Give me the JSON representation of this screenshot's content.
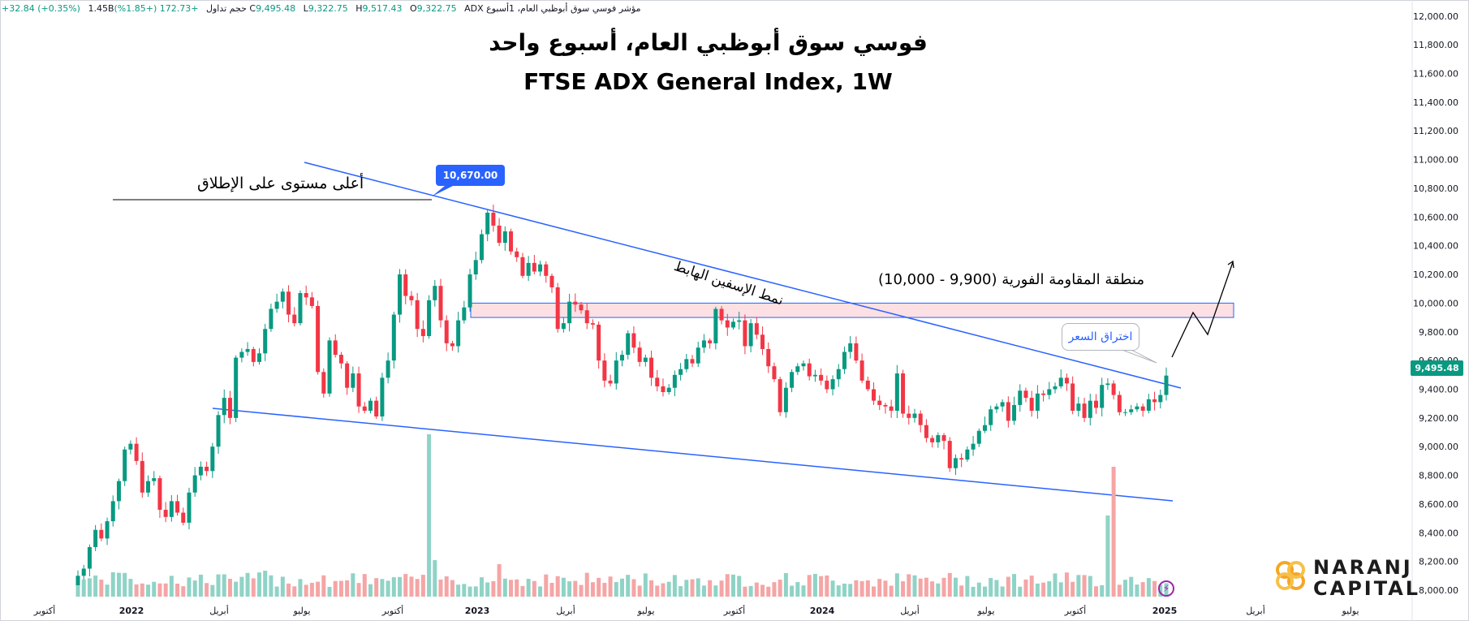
{
  "legend": {
    "symbol_name": "مؤشر فوسي سوق أبوظبي العام، 1أسبوع",
    "exchange": "ADX",
    "o_label": "O",
    "o_value": "9,322.75",
    "h_label": "H",
    "h_value": "9,517.43",
    "l_label": "L",
    "l_value": "9,322.75",
    "c_label": "C",
    "c_value": "9,495.48",
    "change": "+172.73 (+1.85%)",
    "volume_label": "حجم تداول",
    "volume_value": "1.45B",
    "volume_change": "+32.84 (+0.35%)"
  },
  "titles": {
    "arabic": "فوسي سوق أبوظبي العام، أسبوع واحد",
    "english": "FTSE ADX General Index, 1W"
  },
  "annotations": {
    "ath_label": "أعلى مستوى على الإطلاق",
    "peak_value": "10,670.00",
    "wedge_label": "نمط الإسفين الهابط",
    "resistance_label": "منطقة المقاومة الفورية (9,900 - 10,000)",
    "breakout_label": "اختراق السعر",
    "last_price": "9,495.48"
  },
  "branding": {
    "line1": "NARANJ",
    "line2": "CAPITAL",
    "flash_icon": "lightning-icon"
  },
  "colors": {
    "up": "#089981",
    "down": "#f23645",
    "vol_up": "#8fd3c6",
    "vol_down": "#f5a5a5",
    "trendline": "#2962ff",
    "zone_fill": "#fde0e3",
    "zone_border": "#2962ff"
  },
  "chart_data": {
    "type": "candlestick",
    "ylim": [
      8000,
      12000
    ],
    "y_ticks": [
      "12,000.00",
      "11,800.00",
      "11,600.00",
      "11,400.00",
      "11,200.00",
      "11,000.00",
      "10,800.00",
      "10,600.00",
      "10,400.00",
      "10,200.00",
      "10,000.00",
      "9,800.00",
      "9,600.00",
      "9,400.00",
      "9,200.00",
      "9,000.00",
      "8,800.00",
      "8,600.00",
      "8,400.00",
      "8,200.00",
      "8,000.00"
    ],
    "x_ticks": [
      "أكتوبر",
      "2022",
      "أبريل",
      "يوليو",
      "أكتوبر",
      "2023",
      "أبريل",
      "يوليو",
      "أكتوبر",
      "2024",
      "أبريل",
      "يوليو",
      "أكتوبر",
      "2025",
      "أبريل",
      "يوليو"
    ],
    "closes": [
      8100,
      8150,
      8300,
      8420,
      8360,
      8480,
      8620,
      8760,
      8980,
      9020,
      8900,
      8680,
      8760,
      8780,
      8560,
      8510,
      8620,
      8540,
      8470,
      8680,
      8800,
      8860,
      8830,
      9000,
      9220,
      9340,
      9200,
      9620,
      9660,
      9680,
      9590,
      9650,
      9820,
      9960,
      10010,
      10080,
      9920,
      9860,
      10070,
      10040,
      9980,
      9520,
      9370,
      9740,
      9640,
      9580,
      9410,
      9510,
      9280,
      9250,
      9320,
      9210,
      9480,
      9600,
      9920,
      10200,
      10050,
      10020,
      9820,
      9770,
      10020,
      10120,
      9880,
      9720,
      9700,
      9880,
      9970,
      10200,
      10300,
      10480,
      10630,
      10540,
      10420,
      10500,
      10360,
      10320,
      10190,
      10280,
      10220,
      10270,
      10190,
      10110,
      9820,
      9860,
      10010,
      9990,
      9950,
      9860,
      9850,
      9600,
      9460,
      9440,
      9600,
      9640,
      9790,
      9690,
      9590,
      9620,
      9480,
      9420,
      9380,
      9410,
      9500,
      9540,
      9610,
      9580,
      9690,
      9740,
      9720,
      9960,
      9880,
      9830,
      9870,
      9880,
      9700,
      9860,
      9780,
      9680,
      9560,
      9470,
      9240,
      9410,
      9520,
      9560,
      9580,
      9490,
      9500,
      9460,
      9400,
      9470,
      9540,
      9660,
      9720,
      9600,
      9460,
      9400,
      9320,
      9290,
      9280,
      9250,
      9510,
      9230,
      9200,
      9230,
      9150,
      9060,
      9030,
      9080,
      9040,
      8850,
      8920,
      8910,
      8980,
      9020,
      9110,
      9150,
      9260,
      9280,
      9310,
      9180,
      9290,
      9390,
      9340,
      9250,
      9370,
      9360,
      9400,
      9420,
      9480,
      9440,
      9250,
      9300,
      9200,
      9320,
      9270,
      9430,
      9440,
      9360,
      9240,
      9240,
      9260,
      9280,
      9250,
      9330,
      9310,
      9360,
      9495
    ],
    "volume_bars": "~190 weekly volume bars; notable spikes near mid-2022, early-2022 and Oct-2024"
  }
}
